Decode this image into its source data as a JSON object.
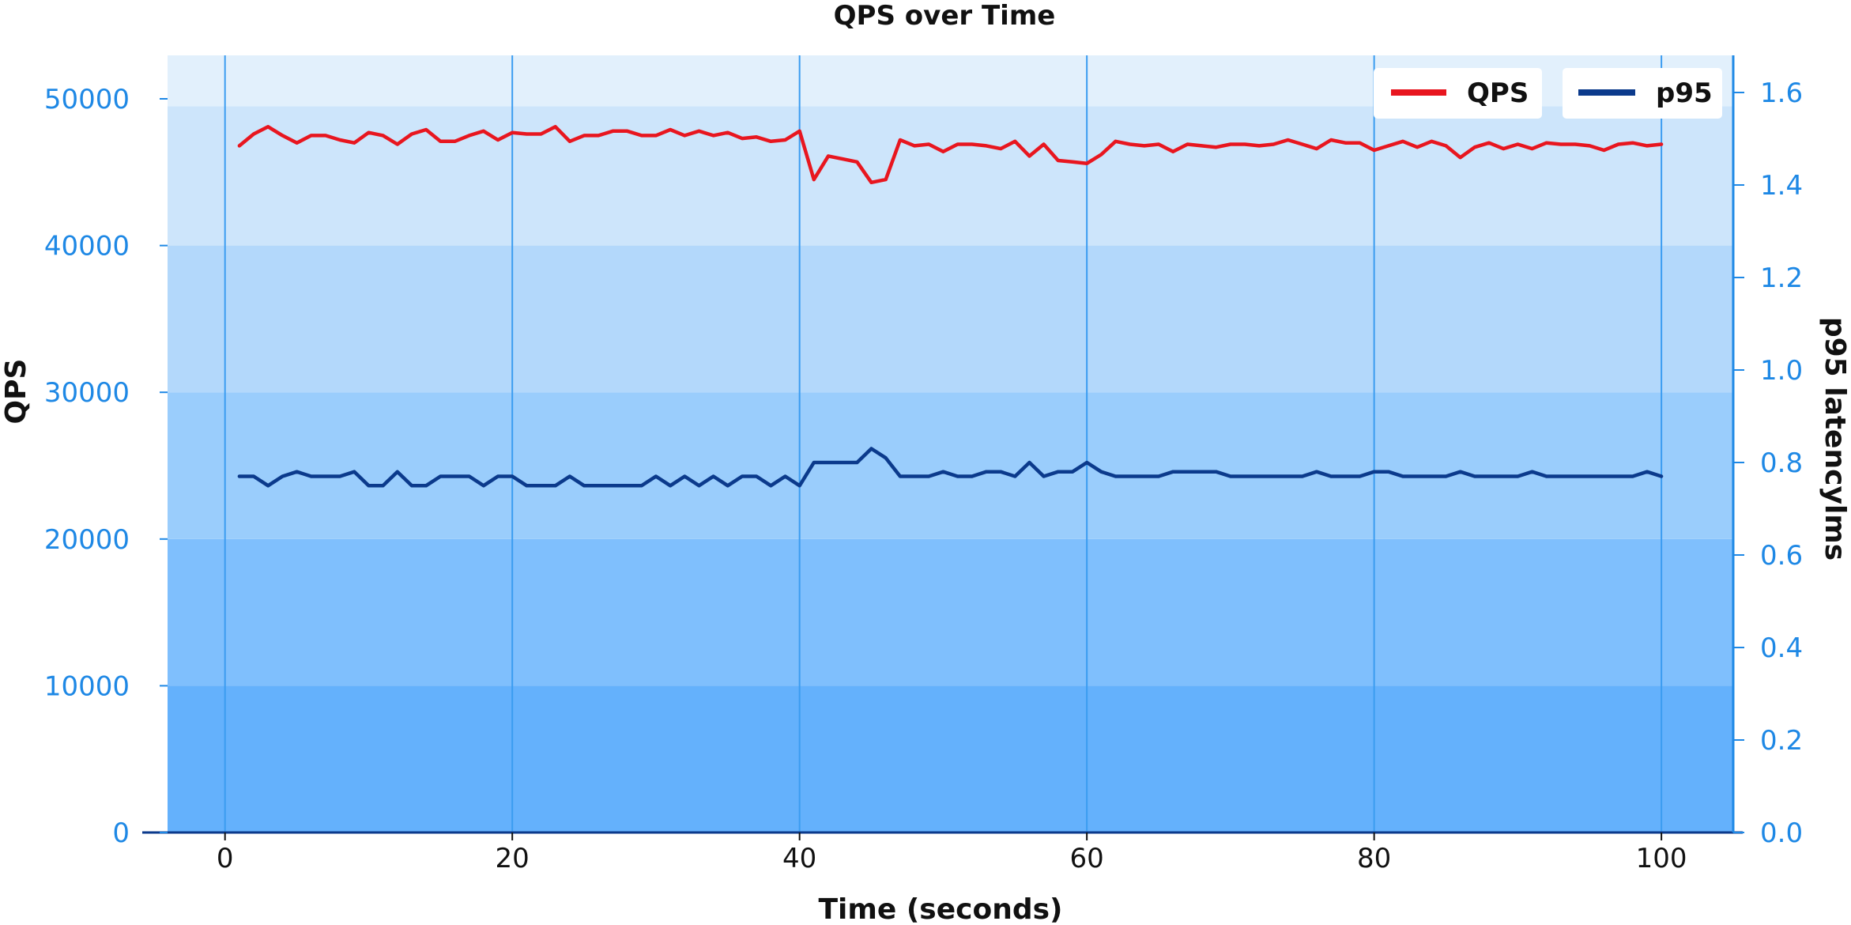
{
  "chart_data": {
    "type": "line",
    "title": "QPS over Time",
    "xlabel": "Time (seconds)",
    "ylabel": "QPS",
    "y2label": "p95 latencylms",
    "xlim": [
      -4,
      105
    ],
    "ylim": [
      0,
      50000
    ],
    "y2lim": [
      0,
      1.6
    ],
    "xticks": [
      0,
      20,
      40,
      60,
      80,
      100
    ],
    "yticks": [
      0,
      10000,
      20000,
      30000,
      40000,
      50000
    ],
    "y2ticks": [
      "0.0",
      "0.2",
      "0.4",
      "0.6",
      "0.8",
      "1.0",
      "1.2",
      "1.4",
      "1.6"
    ],
    "grid": "vertical",
    "legend_position": "top-right",
    "background_bands": [
      "#64b1fc",
      "#7fbffd",
      "#9acdfc",
      "#b3d8fb",
      "#cde5fb",
      "#e2f0fc"
    ],
    "x": [
      1,
      2,
      3,
      4,
      5,
      6,
      7,
      8,
      9,
      10,
      11,
      12,
      13,
      14,
      15,
      16,
      17,
      18,
      19,
      20,
      21,
      22,
      23,
      24,
      25,
      26,
      27,
      28,
      29,
      30,
      31,
      32,
      33,
      34,
      35,
      36,
      37,
      38,
      39,
      40,
      41,
      42,
      43,
      44,
      45,
      46,
      47,
      48,
      49,
      50,
      51,
      52,
      53,
      54,
      55,
      56,
      57,
      58,
      59,
      60,
      61,
      62,
      63,
      64,
      65,
      66,
      67,
      68,
      69,
      70,
      71,
      72,
      73,
      74,
      75,
      76,
      77,
      78,
      79,
      80,
      81,
      82,
      83,
      84,
      85,
      86,
      87,
      88,
      89,
      90,
      91,
      92,
      93,
      94,
      95,
      96,
      97,
      98,
      99,
      100
    ],
    "series": [
      {
        "name": "QPS",
        "axis": "left",
        "color": "#e8161f",
        "values": [
          46800,
          47600,
          48100,
          47500,
          47000,
          47500,
          47500,
          47200,
          47000,
          47700,
          47500,
          46900,
          47600,
          47900,
          47100,
          47100,
          47500,
          47800,
          47200,
          47700,
          47600,
          47600,
          48100,
          47100,
          47500,
          47500,
          47800,
          47800,
          47500,
          47500,
          47900,
          47500,
          47800,
          47500,
          47700,
          47300,
          47400,
          47100,
          47200,
          47800,
          44500,
          46100,
          45900,
          45700,
          44300,
          44500,
          47200,
          46800,
          46900,
          46400,
          46900,
          46900,
          46800,
          46600,
          47100,
          46100,
          46900,
          45800,
          45700,
          45600,
          46200,
          47100,
          46900,
          46800,
          46900,
          46400,
          46900,
          46800,
          46700,
          46900,
          46900,
          46800,
          46900,
          47200,
          46900,
          46600,
          47200,
          47000,
          47000,
          46500,
          46800,
          47100,
          46700,
          47100,
          46800,
          46000,
          46700,
          47000,
          46600,
          46900,
          46600,
          47000,
          46900,
          46900,
          46800,
          46500,
          46900,
          47000,
          46800,
          46900
        ]
      },
      {
        "name": "p95",
        "axis": "right",
        "color": "#0b3a8c",
        "values": [
          0.77,
          0.77,
          0.75,
          0.77,
          0.78,
          0.77,
          0.77,
          0.77,
          0.78,
          0.75,
          0.75,
          0.78,
          0.75,
          0.75,
          0.77,
          0.77,
          0.77,
          0.75,
          0.77,
          0.77,
          0.75,
          0.75,
          0.75,
          0.77,
          0.75,
          0.75,
          0.75,
          0.75,
          0.75,
          0.77,
          0.75,
          0.77,
          0.75,
          0.77,
          0.75,
          0.77,
          0.77,
          0.75,
          0.77,
          0.75,
          0.8,
          0.8,
          0.8,
          0.8,
          0.83,
          0.81,
          0.77,
          0.77,
          0.77,
          0.78,
          0.77,
          0.77,
          0.78,
          0.78,
          0.77,
          0.8,
          0.77,
          0.78,
          0.78,
          0.8,
          0.78,
          0.77,
          0.77,
          0.77,
          0.77,
          0.78,
          0.78,
          0.78,
          0.78,
          0.77,
          0.77,
          0.77,
          0.77,
          0.77,
          0.77,
          0.78,
          0.77,
          0.77,
          0.77,
          0.78,
          0.78,
          0.77,
          0.77,
          0.77,
          0.77,
          0.78,
          0.77,
          0.77,
          0.77,
          0.77,
          0.78,
          0.77,
          0.77,
          0.77,
          0.77,
          0.77,
          0.77,
          0.77,
          0.78,
          0.77
        ]
      }
    ]
  }
}
